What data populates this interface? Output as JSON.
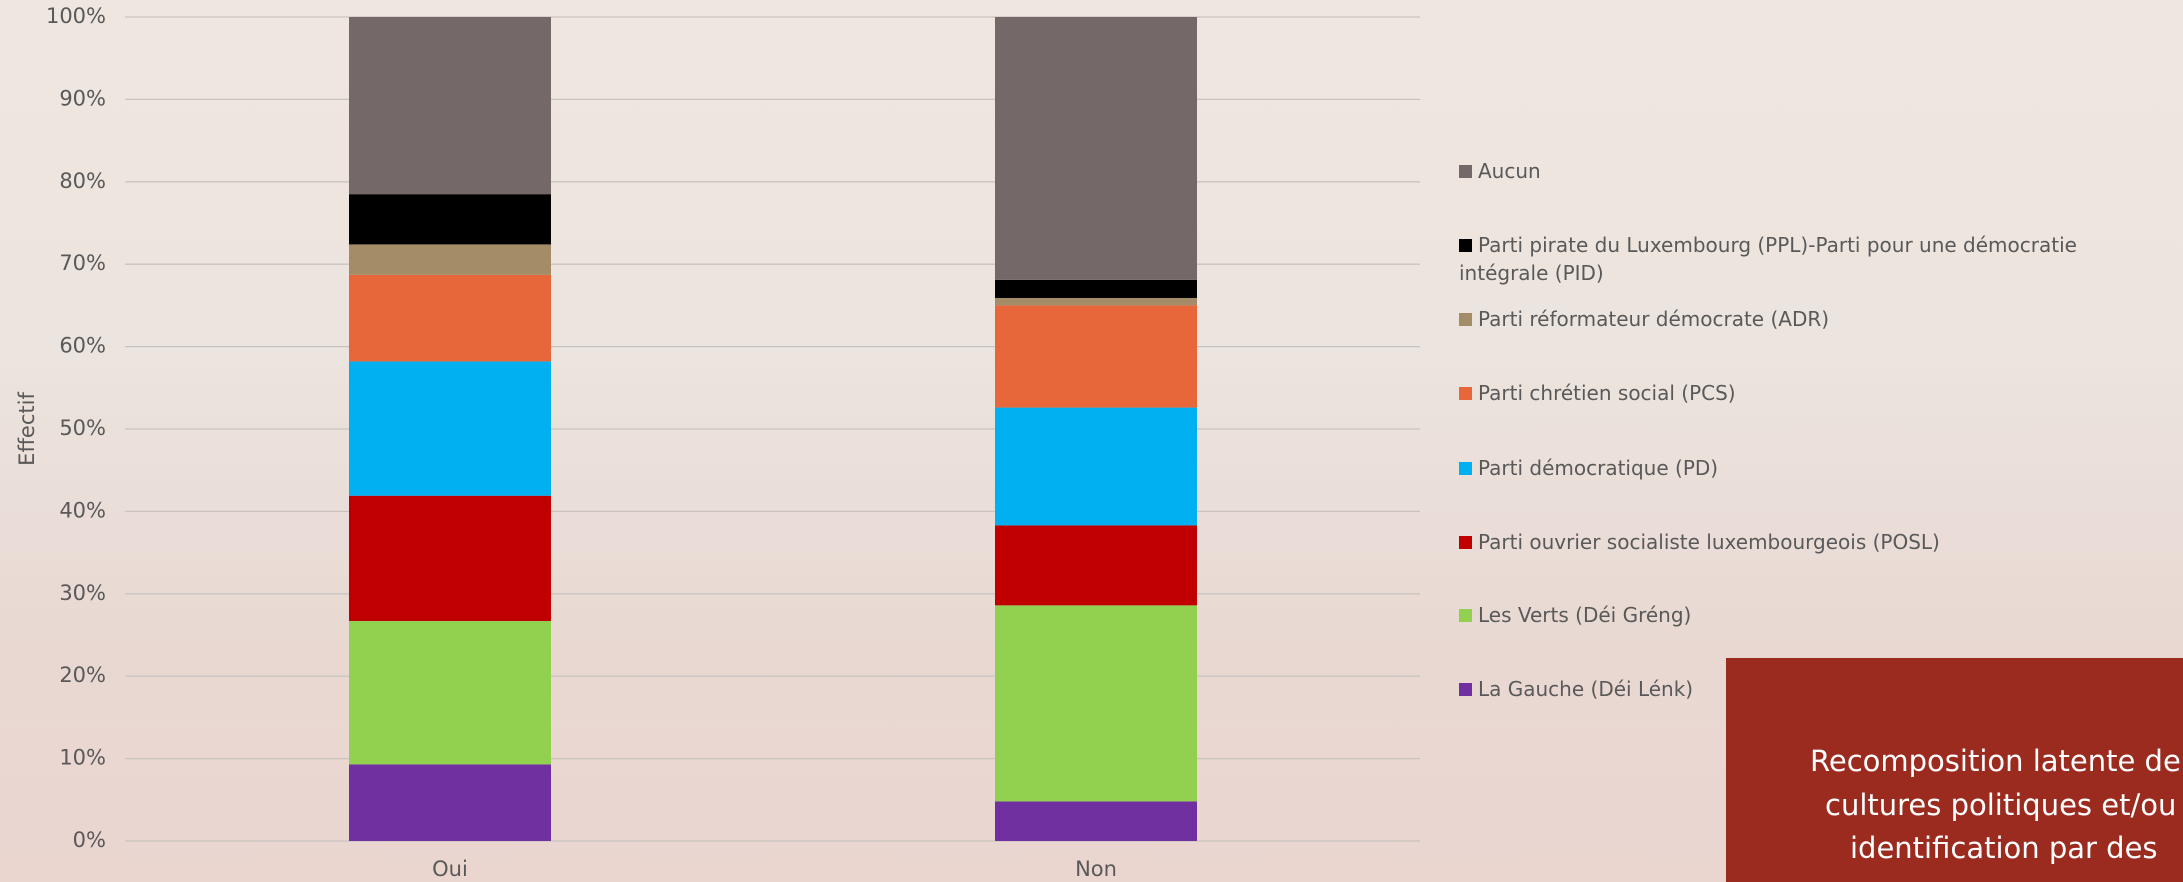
{
  "chart_data": {
    "type": "stacked_bar",
    "ylabel": "Effectif",
    "categories": [
      "Oui",
      "Non"
    ],
    "series": [
      {
        "name": "La Gauche (Déi Lénk)",
        "color": "#7030a0",
        "values": [
          9.3,
          4.8
        ]
      },
      {
        "name": "Les Verts (Déi Gréng)",
        "color": "#92d050",
        "values": [
          17.4,
          23.8
        ]
      },
      {
        "name": "Parti ouvrier socialiste luxembourgeois (POSL)",
        "color": "#c00000",
        "values": [
          15.2,
          9.7
        ]
      },
      {
        "name": "Parti démocratique (PD)",
        "color": "#00b0f0",
        "values": [
          16.3,
          14.3
        ]
      },
      {
        "name": "Parti chrétien social (PCS)",
        "color": "#e8673a",
        "values": [
          10.5,
          12.4
        ]
      },
      {
        "name": "Parti réformateur démocrate (ADR)",
        "color": "#a58c69",
        "values": [
          3.7,
          0.9
        ]
      },
      {
        "name": "Parti pirate du Luxembourg (PPL)-Parti pour une démocratie intégrale (PID)",
        "color": "#000000",
        "values": [
          6.1,
          2.2
        ]
      },
      {
        "name": "Aucun",
        "color": "#756868",
        "values": [
          21.5,
          31.9
        ]
      }
    ],
    "ylim": [
      0,
      100
    ],
    "yticks": [
      {
        "value": 0,
        "label": "0%"
      },
      {
        "value": 10,
        "label": "10%"
      },
      {
        "value": 20,
        "label": "20%"
      },
      {
        "value": 30,
        "label": "30%"
      },
      {
        "value": 40,
        "label": "40%"
      },
      {
        "value": 50,
        "label": "50%"
      },
      {
        "value": 60,
        "label": "60%"
      },
      {
        "value": 70,
        "label": "70%"
      },
      {
        "value": 80,
        "label": "80%"
      },
      {
        "value": 90,
        "label": "90%"
      },
      {
        "value": 100,
        "label": "100%"
      }
    ],
    "grid": true
  },
  "note": {
    "lines": [
      "Recomposition latente de",
      "cultures politiques et/ou",
      "identification par des"
    ]
  }
}
